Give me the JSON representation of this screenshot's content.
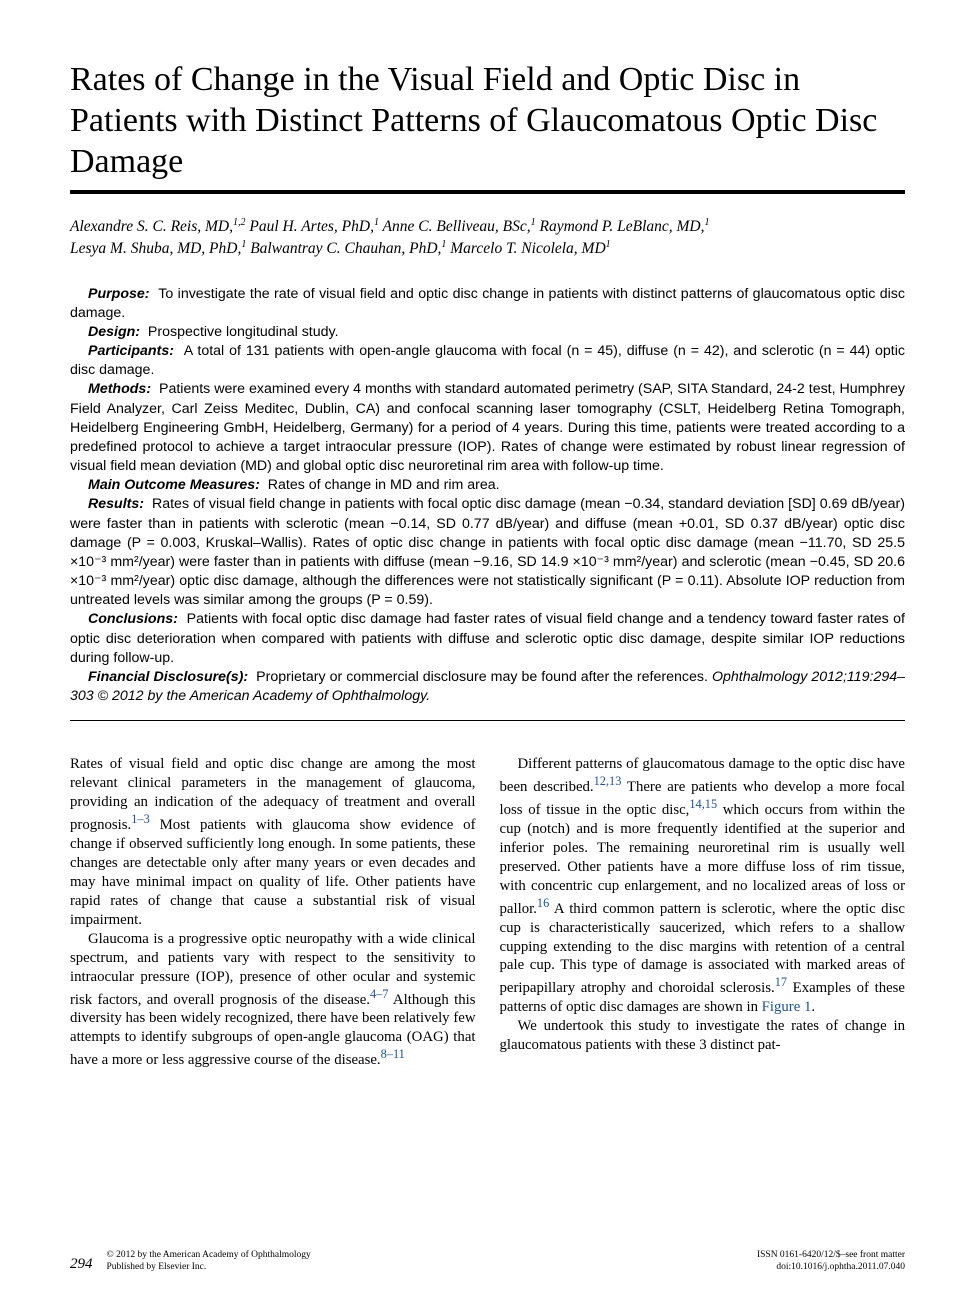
{
  "title": "Rates of Change in the Visual Field and Optic Disc in Patients with Distinct Patterns of Glaucomatous Optic Disc Damage",
  "authors_line1": "Alexandre S. C. Reis, MD,",
  "authors_sup1": "1,2",
  "authors_line1b": " Paul H. Artes, PhD,",
  "authors_sup2": "1",
  "authors_line1c": " Anne C. Belliveau, BSc,",
  "authors_sup3": "1",
  "authors_line1d": " Raymond P. LeBlanc, MD,",
  "authors_sup4": "1",
  "authors_line2": "Lesya M. Shuba, MD, PhD,",
  "authors_sup5": "1",
  "authors_line2b": " Balwantray C. Chauhan, PhD,",
  "authors_sup6": "1",
  "authors_line2c": " Marcelo T. Nicolela, MD",
  "authors_sup7": "1",
  "abstract": {
    "purpose_label": "Purpose:",
    "purpose": "To investigate the rate of visual field and optic disc change in patients with distinct patterns of glaucomatous optic disc damage.",
    "design_label": "Design:",
    "design": "Prospective longitudinal study.",
    "participants_label": "Participants:",
    "participants": "A total of 131 patients with open-angle glaucoma with focal (n = 45), diffuse (n = 42), and sclerotic (n = 44) optic disc damage.",
    "methods_label": "Methods:",
    "methods": "Patients were examined every 4 months with standard automated perimetry (SAP, SITA Standard, 24-2 test, Humphrey Field Analyzer, Carl Zeiss Meditec, Dublin, CA) and confocal scanning laser tomography (CSLT, Heidelberg Retina Tomograph, Heidelberg Engineering GmbH, Heidelberg, Germany) for a period of 4 years. During this time, patients were treated according to a predefined protocol to achieve a target intraocular pressure (IOP). Rates of change were estimated by robust linear regression of visual field mean deviation (MD) and global optic disc neuroretinal rim area with follow-up time.",
    "outcome_label": "Main Outcome Measures:",
    "outcome": "Rates of change in MD and rim area.",
    "results_label": "Results:",
    "results": "Rates of visual field change in patients with focal optic disc damage (mean −0.34, standard deviation [SD] 0.69 dB/year) were faster than in patients with sclerotic (mean −0.14, SD 0.77 dB/year) and diffuse (mean +0.01, SD 0.37 dB/year) optic disc damage (P = 0.003, Kruskal–Wallis). Rates of optic disc change in patients with focal optic disc damage (mean −11.70, SD 25.5 ×10⁻³ mm²/year) were faster than in patients with diffuse (mean −9.16, SD 14.9 ×10⁻³ mm²/year) and sclerotic (mean −0.45, SD 20.6 ×10⁻³ mm²/year) optic disc damage, although the differences were not statistically significant (P = 0.11). Absolute IOP reduction from untreated levels was similar among the groups (P = 0.59).",
    "conclusions_label": "Conclusions:",
    "conclusions": "Patients with focal optic disc damage had faster rates of visual field change and a tendency toward faster rates of optic disc deterioration when compared with patients with diffuse and sclerotic optic disc damage, despite similar IOP reductions during follow-up.",
    "fd_label": "Financial Disclosure(s):",
    "fd": "Proprietary or commercial disclosure may be found after the references.",
    "citation": "Ophthalmology 2012;119:294–303 © 2012 by the American Academy of Ophthalmology."
  },
  "body": {
    "p1a": "Rates of visual field and optic disc change are among the most relevant clinical parameters in the management of glaucoma, providing an indication of the adequacy of treatment and overall prognosis.",
    "p1ref1": "1–3",
    "p1b": " Most patients with glaucoma show evidence of change if observed sufficiently long enough. In some patients, these changes are detectable only after many years or even decades and may have minimal impact on quality of life. Other patients have rapid rates of change that cause a substantial risk of visual impairment.",
    "p2a": "Glaucoma is a progressive optic neuropathy with a wide clinical spectrum, and patients vary with respect to the sensitivity to intraocular pressure (IOP), presence of other ocular and systemic risk factors, and overall prognosis of the disease.",
    "p2ref1": "4–7",
    "p2b": " Although this diversity has been widely recognized, there have been relatively few attempts to identify subgroups of open-angle glaucoma (OAG) that have a more or less aggressive course of the disease.",
    "p2ref2": "8–11",
    "p3a": "Different patterns of glaucomatous damage to the optic disc have been described.",
    "p3ref1": "12,13",
    "p3b": " There are patients who develop a more focal loss of tissue in the optic disc,",
    "p3ref2": "14,15",
    "p3c": " which occurs from within the cup (notch) and is more frequently identified at the superior and inferior poles. The remaining neuroretinal rim is usually well preserved. Other patients have a more diffuse loss of rim tissue, with concentric cup enlargement, and no localized areas of loss or pallor.",
    "p3ref3": "16",
    "p3d": " A third common pattern is sclerotic, where the optic disc cup is characteristically saucerized, which refers to a shallow cupping extending to the disc margins with retention of a central pale cup. This type of damage is associated with marked areas of peripapillary atrophy and choroidal sclerosis.",
    "p3ref4": "17",
    "p3e": " Examples of these patterns of optic disc damages are shown in ",
    "p3fig": "Figure 1",
    "p3f": ".",
    "p4": "We undertook this study to investigate the rates of change in glaucomatous patients with these 3 distinct pat-"
  },
  "footer": {
    "page": "294",
    "copyright": "© 2012 by the American Academy of Ophthalmology",
    "publisher": "Published by Elsevier Inc.",
    "issn": "ISSN 0161-6420/12/$–see front matter",
    "doi": "doi:10.1016/j.ophtha.2011.07.040"
  }
}
